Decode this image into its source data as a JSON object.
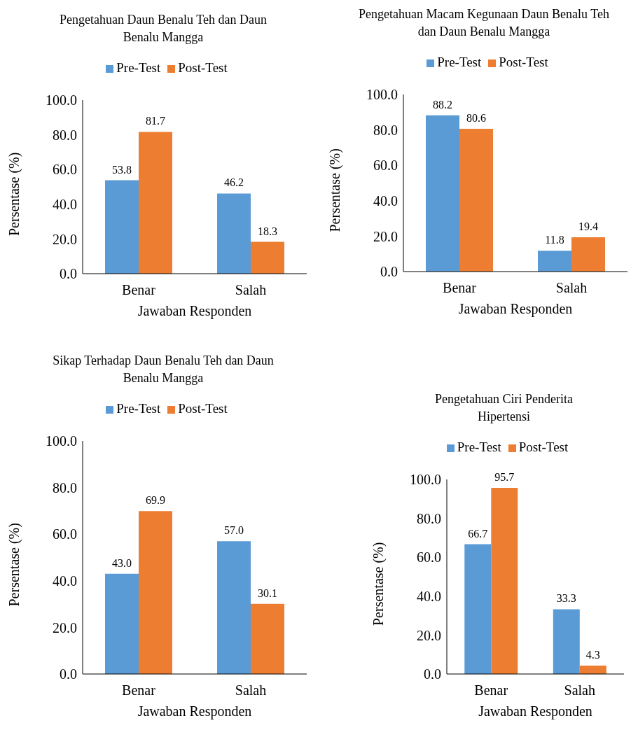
{
  "chart_data": [
    {
      "type": "bar",
      "title": "Pengetahuan Daun Benalu Teh dan Daun Benalu Mangga",
      "xlabel": "Jawaban Responden",
      "ylabel": "Persentase (%)",
      "categories": [
        "Benar",
        "Salah"
      ],
      "series": [
        {
          "name": "Pre-Test",
          "color": "#5b9bd5",
          "values": [
            53.8,
            46.2
          ],
          "value_labels": [
            "53.8",
            "46.2"
          ]
        },
        {
          "name": "Post-Test",
          "color": "#ed7d31",
          "values": [
            81.7,
            18.3
          ],
          "value_labels": [
            "81.7",
            "18.3"
          ]
        }
      ],
      "ylim": [
        0,
        100
      ],
      "yticks": [
        {
          "value": 0,
          "label": "0.0"
        },
        {
          "value": 20,
          "label": "20.0"
        },
        {
          "value": 40,
          "label": "40.0"
        },
        {
          "value": 60,
          "label": "60.0"
        },
        {
          "value": 80,
          "label": "80.0"
        },
        {
          "value": 100,
          "label": "100.0"
        }
      ],
      "grid": false,
      "legend": "top"
    },
    {
      "type": "bar",
      "title": "Pengetahuan Macam Kegunaan Daun Benalu Teh dan Daun Benalu Mangga",
      "xlabel": "Jawaban Responden",
      "ylabel": "Persentase (%)",
      "categories": [
        "Benar",
        "Salah"
      ],
      "series": [
        {
          "name": "Pre-Test",
          "color": "#5b9bd5",
          "values": [
            88.2,
            11.8
          ],
          "value_labels": [
            "88.2",
            "11.8"
          ]
        },
        {
          "name": "Post-Test",
          "color": "#ed7d31",
          "values": [
            80.6,
            19.4
          ],
          "value_labels": [
            "80.6",
            "19.4"
          ]
        }
      ],
      "ylim": [
        0,
        100
      ],
      "yticks": [
        {
          "value": 0,
          "label": "0.0"
        },
        {
          "value": 20,
          "label": "20.0"
        },
        {
          "value": 40,
          "label": "40.0"
        },
        {
          "value": 60,
          "label": "60.0"
        },
        {
          "value": 80,
          "label": "80.0"
        },
        {
          "value": 100,
          "label": "100.0"
        }
      ],
      "grid": false,
      "legend": "top"
    },
    {
      "type": "bar",
      "title": "Sikap Terhadap Daun Benalu Teh dan Daun Benalu Mangga",
      "xlabel": "Jawaban Responden",
      "ylabel": "Persentase (%)",
      "categories": [
        "Benar",
        "Salah"
      ],
      "series": [
        {
          "name": "Pre-Test",
          "color": "#5b9bd5",
          "values": [
            43.0,
            57.0
          ],
          "value_labels": [
            "43.0",
            "57.0"
          ]
        },
        {
          "name": "Post-Test",
          "color": "#ed7d31",
          "values": [
            69.9,
            30.1
          ],
          "value_labels": [
            "69.9",
            "30.1"
          ]
        }
      ],
      "ylim": [
        0,
        100
      ],
      "yticks": [
        {
          "value": 0,
          "label": "0.0"
        },
        {
          "value": 20,
          "label": "20.0"
        },
        {
          "value": 40,
          "label": "40.0"
        },
        {
          "value": 60,
          "label": "60.0"
        },
        {
          "value": 80,
          "label": "80.0"
        },
        {
          "value": 100,
          "label": "100.0"
        }
      ],
      "grid": false,
      "legend": "top"
    },
    {
      "type": "bar",
      "title": "Pengetahuan Ciri Penderita Hipertensi",
      "xlabel": "Jawaban Responden",
      "ylabel": "Persentase (%)",
      "categories": [
        "Benar",
        "Salah"
      ],
      "series": [
        {
          "name": "Pre-Test",
          "color": "#5b9bd5",
          "values": [
            66.7,
            33.3
          ],
          "value_labels": [
            "66.7",
            "33.3"
          ]
        },
        {
          "name": "Post-Test",
          "color": "#ed7d31",
          "values": [
            95.7,
            4.3
          ],
          "value_labels": [
            "95.7",
            "4.3"
          ]
        }
      ],
      "ylim": [
        0,
        100
      ],
      "yticks": [
        {
          "value": 0,
          "label": "0.0"
        },
        {
          "value": 20,
          "label": "20.0"
        },
        {
          "value": 40,
          "label": "40.0"
        },
        {
          "value": 60,
          "label": "60.0"
        },
        {
          "value": 80,
          "label": "80.0"
        },
        {
          "value": 100,
          "label": "100.0"
        }
      ],
      "grid": false,
      "legend": "top"
    }
  ]
}
